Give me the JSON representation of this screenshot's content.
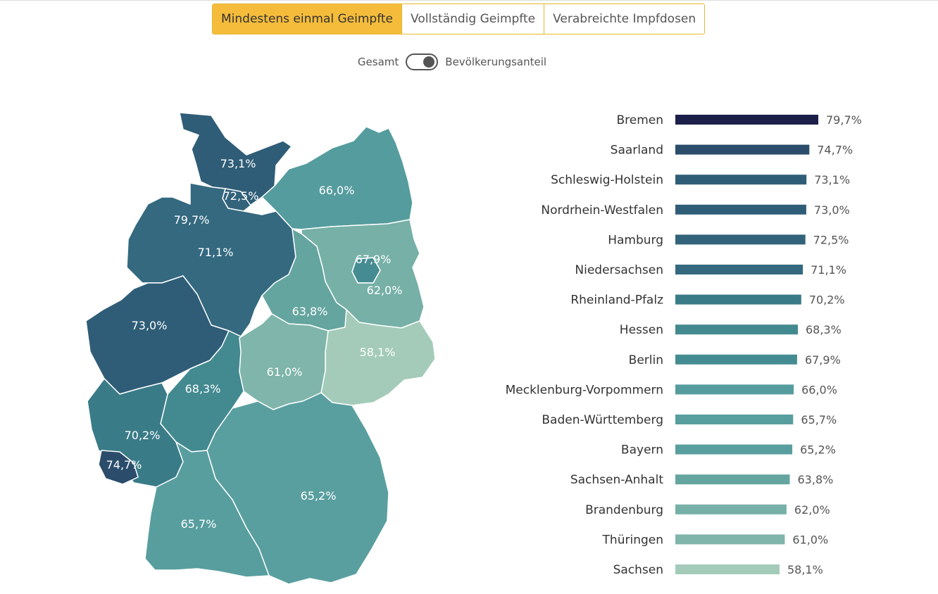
{
  "tabs": [
    {
      "label": "Mindestens einmal Geimpfte",
      "active": true
    },
    {
      "label": "Vollständig Geimpfte",
      "active": false
    },
    {
      "label": "Verabreichte Impfdosen",
      "active": false
    }
  ],
  "toggle": {
    "left_label": "Gesamt",
    "right_label": "Bevölkerungsanteil",
    "selected": "Bevölkerungsanteil"
  },
  "chart_data": {
    "type": "bar",
    "orientation": "horizontal",
    "categories": [
      "Bremen",
      "Saarland",
      "Schleswig-Holstein",
      "Nordrhein-Westfalen",
      "Hamburg",
      "Niedersachsen",
      "Rheinland-Pfalz",
      "Hessen",
      "Berlin",
      "Mecklenburg-Vorpommern",
      "Baden-Württemberg",
      "Bayern",
      "Sachsen-Anhalt",
      "Brandenburg",
      "Thüringen",
      "Sachsen"
    ],
    "values": [
      79.7,
      74.7,
      73.1,
      73.0,
      72.5,
      71.1,
      70.2,
      68.3,
      67.9,
      66.0,
      65.7,
      65.2,
      63.8,
      62.0,
      61.0,
      58.1
    ],
    "value_labels": [
      "79,7%",
      "74,7%",
      "73,1%",
      "73,0%",
      "72,5%",
      "71,1%",
      "70,2%",
      "68,3%",
      "67,9%",
      "66,0%",
      "65,7%",
      "65,2%",
      "63,8%",
      "62,0%",
      "61,0%",
      "58,1%"
    ],
    "colors": [
      "#1c1f4a",
      "#2b4d6b",
      "#2f5d77",
      "#2f5d77",
      "#32637b",
      "#34697f",
      "#3a7b88",
      "#438a90",
      "#458c92",
      "#559c9e",
      "#589e9f",
      "#5a9f9f",
      "#65a59f",
      "#76b0a7",
      "#7fb5aa",
      "#a4cbb9"
    ],
    "title": "",
    "xlabel": "",
    "ylabel": "",
    "xlim": [
      0,
      79.7
    ],
    "grid": false,
    "legend": "none",
    "map_labels": [
      "73,1%",
      "72,5%",
      "79,7%",
      "71,1%",
      "66,0%",
      "67,9%",
      "62,0%",
      "63,8%",
      "73,0%",
      "58,1%",
      "61,0%",
      "68,3%",
      "70,2%",
      "74,7%",
      "65,2%",
      "65,7%"
    ],
    "map_states": [
      "Schleswig-Holstein",
      "Hamburg",
      "Bremen",
      "Niedersachsen",
      "Mecklenburg-Vorpommern",
      "Berlin",
      "Brandenburg",
      "Sachsen-Anhalt",
      "Nordrhein-Westfalen",
      "Sachsen",
      "Thüringen",
      "Hessen",
      "Rheinland-Pfalz",
      "Saarland",
      "Bayern",
      "Baden-Württemberg"
    ]
  }
}
